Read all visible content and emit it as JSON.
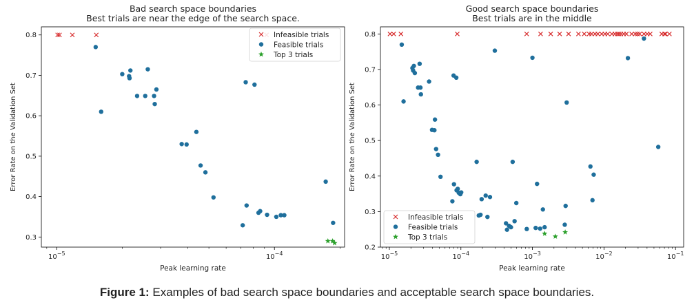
{
  "figure_caption": {
    "label": "Figure 1:",
    "text": "Examples of bad search space boundaries and acceptable search space boundaries."
  },
  "colors": {
    "infeasible": "#d62728",
    "feasible": "#1f6f9c",
    "top3": "#2ca02c",
    "text": "#222222"
  },
  "chart_data": [
    {
      "type": "scatter",
      "title": "Bad search space boundaries",
      "subtitle": "Best trials are near the edge of the search space.",
      "xlabel": "Peak learning rate",
      "ylabel": "Error Rate on the Validation Set",
      "xscale": "log",
      "xlim": [
        8.5e-06,
        0.00021
      ],
      "ylim": [
        0.275,
        0.82
      ],
      "xticks": [
        {
          "value": 1e-05,
          "label": "10⁻⁵"
        },
        {
          "value": 0.0001,
          "label": "10⁻⁴"
        }
      ],
      "yticks": [
        0.3,
        0.4,
        0.5,
        0.6,
        0.7,
        0.8
      ],
      "legend_position": "top-right",
      "grid": false,
      "series": [
        {
          "name": "Infeasible trials",
          "marker": "x",
          "x": [
            1.01e-05,
            1.03e-05,
            1.18e-05,
            1.52e-05,
            9.2e-05
          ],
          "y": [
            0.8,
            0.8,
            0.8,
            0.8,
            0.8
          ]
        },
        {
          "name": "Feasible trials",
          "marker": "circle",
          "x": [
            1.51e-05,
            1.6e-05,
            2e-05,
            2.15e-05,
            2.16e-05,
            2.18e-05,
            2.34e-05,
            2.55e-05,
            2.62e-05,
            2.8e-05,
            2.82e-05,
            2.87e-05,
            3.75e-05,
            3.95e-05,
            4.38e-05,
            4.58e-05,
            4.82e-05,
            5.25e-05,
            7.15e-05,
            7.38e-05,
            7.45e-05,
            8.1e-05,
            8.45e-05,
            8.6e-05,
            9.25e-05,
            0.000102,
            0.000107,
            0.000111,
            0.000172,
            0.000186
          ],
          "y": [
            0.77,
            0.61,
            0.703,
            0.698,
            0.693,
            0.712,
            0.649,
            0.649,
            0.715,
            0.649,
            0.629,
            0.665,
            0.53,
            0.529,
            0.56,
            0.477,
            0.46,
            0.398,
            0.329,
            0.683,
            0.378,
            0.677,
            0.36,
            0.364,
            0.355,
            0.35,
            0.354,
            0.354,
            0.437,
            0.335
          ]
        },
        {
          "name": "Top 3 trials",
          "marker": "star",
          "x": [
            0.000176,
            0.000185,
            0.000189
          ],
          "y": [
            0.29,
            0.29,
            0.285
          ]
        }
      ]
    },
    {
      "type": "scatter",
      "title": "Good search space boundaries",
      "subtitle": "Best trials are in the middle",
      "xlabel": "Peak learning rate",
      "ylabel": "Error Rate on the Validation Set",
      "xscale": "log",
      "xlim": [
        7.5e-06,
        0.13
      ],
      "ylim": [
        0.2,
        0.82
      ],
      "xticks": [
        {
          "value": 1e-05,
          "label": "10⁻⁵"
        },
        {
          "value": 0.0001,
          "label": "10⁻⁴"
        },
        {
          "value": 0.001,
          "label": "10⁻³"
        },
        {
          "value": 0.01,
          "label": "10⁻²"
        },
        {
          "value": 0.1,
          "label": "10⁻¹"
        }
      ],
      "yticks": [
        0.2,
        0.3,
        0.4,
        0.5,
        0.6,
        0.7,
        0.8
      ],
      "legend_position": "bottom-left",
      "grid": false,
      "series": [
        {
          "name": "Infeasible trials",
          "marker": "x",
          "x": [
            1.02e-05,
            1.15e-05,
            1.45e-05,
            8.9e-05,
            0.00083,
            0.0013,
            0.0018,
            0.0024,
            0.0032,
            0.0044,
            0.0053,
            0.0062,
            0.0067,
            0.0075,
            0.0082,
            0.0093,
            0.0103,
            0.0113,
            0.0129,
            0.0142,
            0.0153,
            0.0162,
            0.0172,
            0.0189,
            0.0206,
            0.0244,
            0.0274,
            0.0294,
            0.0316,
            0.0363,
            0.0402,
            0.0443,
            0.0642,
            0.0703,
            0.0723,
            0.0822
          ],
          "y": [
            0.8,
            0.8,
            0.8,
            0.8,
            0.8,
            0.8,
            0.8,
            0.8,
            0.8,
            0.8,
            0.8,
            0.8,
            0.8,
            0.8,
            0.8,
            0.8,
            0.8,
            0.8,
            0.8,
            0.8,
            0.8,
            0.8,
            0.8,
            0.8,
            0.8,
            0.8,
            0.8,
            0.8,
            0.8,
            0.8,
            0.8,
            0.8,
            0.8,
            0.8,
            0.8,
            0.8
          ]
        },
        {
          "name": "Feasible trials",
          "marker": "circle",
          "x": [
            1.49e-05,
            1.58e-05,
            2.1e-05,
            2.15e-05,
            2.2e-05,
            2.27e-05,
            2.52e-05,
            2.65e-05,
            2.72e-05,
            2.76e-05,
            3.59e-05,
            3.95e-05,
            4.26e-05,
            4.34e-05,
            4.5e-05,
            4.79e-05,
            5.19e-05,
            7.6e-05,
            7.9e-05,
            8e-05,
            8.62e-05,
            8.7e-05,
            9.03e-05,
            9.33e-05,
            9.82e-05,
            0.000101,
            0.000166,
            0.000178,
            0.000188,
            0.000195,
            0.000222,
            0.000235,
            0.000255,
            0.000298,
            0.000427,
            0.000441,
            0.00047,
            0.000501,
            0.000529,
            0.000563,
            0.000595,
            0.000833,
            0.001,
            0.00111,
            0.00116,
            0.00128,
            0.0014,
            0.00148,
            0.00283,
            0.00291,
            0.00301,
            0.00647,
            0.00691,
            0.00718,
            0.0216,
            0.0362,
            0.0574
          ],
          "y": [
            0.77,
            0.61,
            0.704,
            0.697,
            0.71,
            0.69,
            0.649,
            0.716,
            0.649,
            0.63,
            0.666,
            0.53,
            0.529,
            0.559,
            0.476,
            0.46,
            0.398,
            0.329,
            0.683,
            0.377,
            0.677,
            0.36,
            0.364,
            0.353,
            0.349,
            0.354,
            0.44,
            0.289,
            0.291,
            0.335,
            0.345,
            0.285,
            0.341,
            0.753,
            0.267,
            0.249,
            0.26,
            0.256,
            0.44,
            0.273,
            0.324,
            0.251,
            0.733,
            0.254,
            0.378,
            0.252,
            0.306,
            0.256,
            0.263,
            0.316,
            0.607,
            0.427,
            0.332,
            0.404,
            0.732,
            0.787,
            0.482
          ]
        },
        {
          "name": "Top 3 trials",
          "marker": "star",
          "x": [
            0.00148,
            0.00209,
            0.00287
          ],
          "y": [
            0.238,
            0.23,
            0.242
          ]
        }
      ]
    }
  ]
}
